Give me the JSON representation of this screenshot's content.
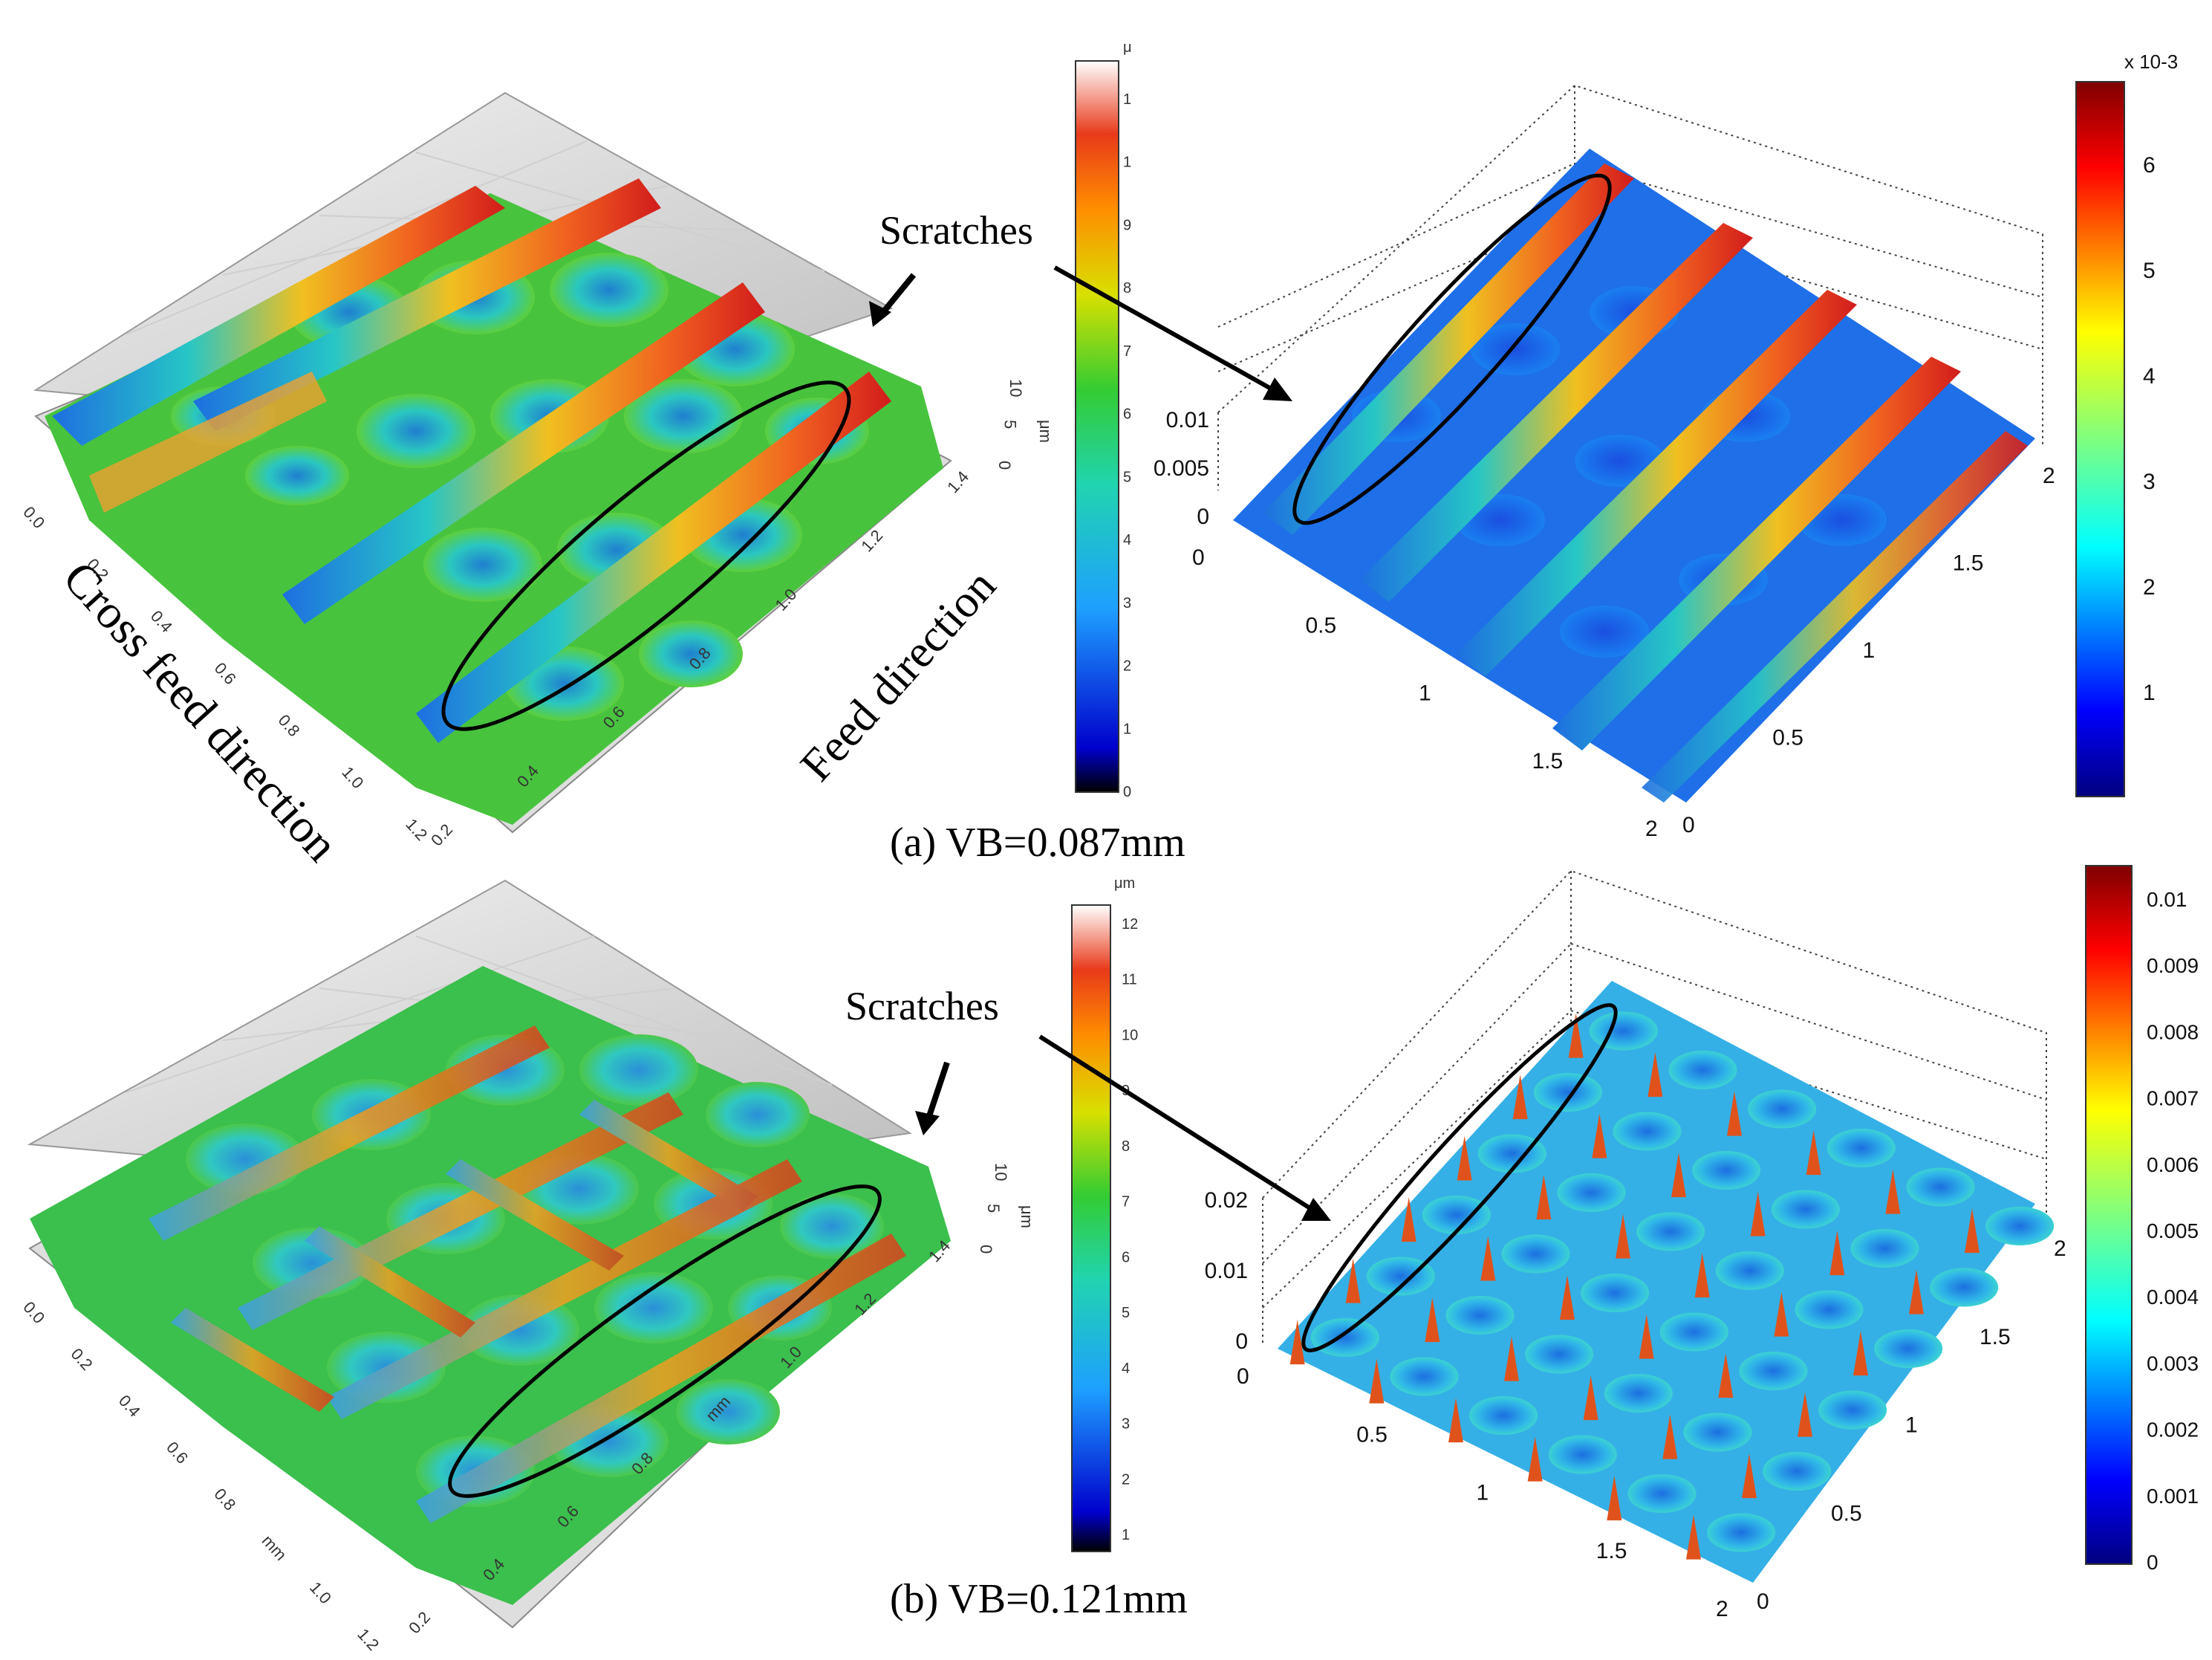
{
  "panel_a": {
    "caption": "(a) VB=0.087mm",
    "scratches_label": "Scratches",
    "cross_feed_label": "Cross feed direction",
    "feed_label": "Feed direction",
    "left_axis_ticks": [
      "0.0",
      "0.2",
      "0.4",
      "0.6",
      "0.8",
      "1.0",
      "1.2"
    ],
    "left_axis_ticks_right": [
      "0.2",
      "0.4",
      "0.6",
      "0.8",
      "1.0",
      "1.2",
      "1.4"
    ],
    "left_vertical_ticks": [
      "0",
      "5",
      "10"
    ],
    "left_vertical_unit": "μm",
    "left_colorbar_unit": "μ",
    "left_colorbar_ticks": [
      "0",
      "1",
      "2",
      "3",
      "4",
      "5",
      "6",
      "7",
      "8",
      "9",
      "1",
      "1"
    ],
    "right_z_ticks": [
      "0.01",
      "0.005",
      "0"
    ],
    "right_x_ticks": [
      "0",
      "0.5",
      "1",
      "1.5",
      "2"
    ],
    "right_y_ticks": [
      "0",
      "0.5",
      "1",
      "1.5",
      "2"
    ],
    "right_colorbar_exponent": "x 10-3",
    "right_colorbar_ticks": [
      "1",
      "2",
      "3",
      "4",
      "5",
      "6"
    ]
  },
  "panel_b": {
    "caption": "(b) VB=0.121mm",
    "scratches_label": "Scratches",
    "left_axis_ticks": [
      "0.0",
      "0.2",
      "0.4",
      "0.6",
      "0.8",
      "mm",
      "1.0",
      "1.2"
    ],
    "left_axis_ticks_right": [
      "0.2",
      "0.4",
      "0.6",
      "0.8",
      "mm",
      "1.0",
      "1.2",
      "1.4"
    ],
    "left_vertical_ticks": [
      "0",
      "5",
      "10"
    ],
    "left_vertical_unit": "μm",
    "left_colorbar_unit": "μm",
    "left_colorbar_ticks": [
      "1",
      "2",
      "3",
      "4",
      "5",
      "6",
      "7",
      "8",
      "9",
      "10",
      "11",
      "12"
    ],
    "right_z_ticks": [
      "0.02",
      "0.01",
      "0"
    ],
    "right_x_ticks": [
      "0",
      "0.5",
      "1",
      "1.5",
      "2"
    ],
    "right_y_ticks": [
      "0",
      "0.5",
      "1",
      "1.5",
      "2"
    ],
    "right_colorbar_ticks": [
      "0",
      "0.001",
      "0.002",
      "0.003",
      "0.004",
      "0.005",
      "0.006",
      "0.007",
      "0.008",
      "0.009",
      "0.01"
    ]
  },
  "colors": {
    "jet": [
      "#00007f",
      "#0000ff",
      "#007fff",
      "#00ffff",
      "#7fff7f",
      "#ffff00",
      "#ff7f00",
      "#ff0000",
      "#7f0000"
    ],
    "surface_peak": "#e8421a",
    "surface_mid": "#3fbf4a",
    "surface_low": "#1f8fd6"
  }
}
